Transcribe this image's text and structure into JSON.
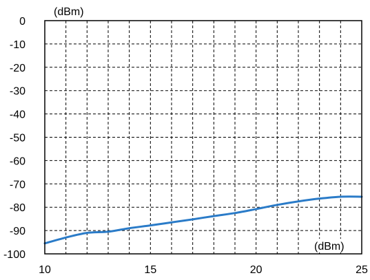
{
  "chart_data": {
    "type": "line",
    "x_unit": "(dBm)",
    "y_unit": "(dBm)",
    "xlim": [
      10,
      25
    ],
    "ylim": [
      -100,
      0
    ],
    "x_ticks": [
      10,
      15,
      20,
      25
    ],
    "y_ticks": [
      0,
      -10,
      -20,
      -30,
      -40,
      -50,
      -60,
      -70,
      -80,
      -90,
      -100
    ],
    "x_grid": [
      11,
      12,
      13,
      14,
      15,
      16,
      17,
      18,
      19,
      20,
      21,
      22,
      23,
      24
    ],
    "y_grid": [
      -10,
      -20,
      -30,
      -40,
      -50,
      -60,
      -70,
      -80,
      -90
    ],
    "grid": true,
    "series": [
      {
        "color": "#2a7bc8",
        "x": [
          10,
          11,
          12,
          13,
          14,
          15,
          16,
          17,
          18,
          19,
          20,
          21,
          22,
          23,
          24,
          25
        ],
        "y": [
          -95.5,
          -93,
          -91,
          -90.5,
          -89,
          -87.8,
          -86.5,
          -85.2,
          -83.8,
          -82.5,
          -80.8,
          -79,
          -77.5,
          -76.3,
          -75.5,
          -75.5
        ]
      }
    ]
  }
}
